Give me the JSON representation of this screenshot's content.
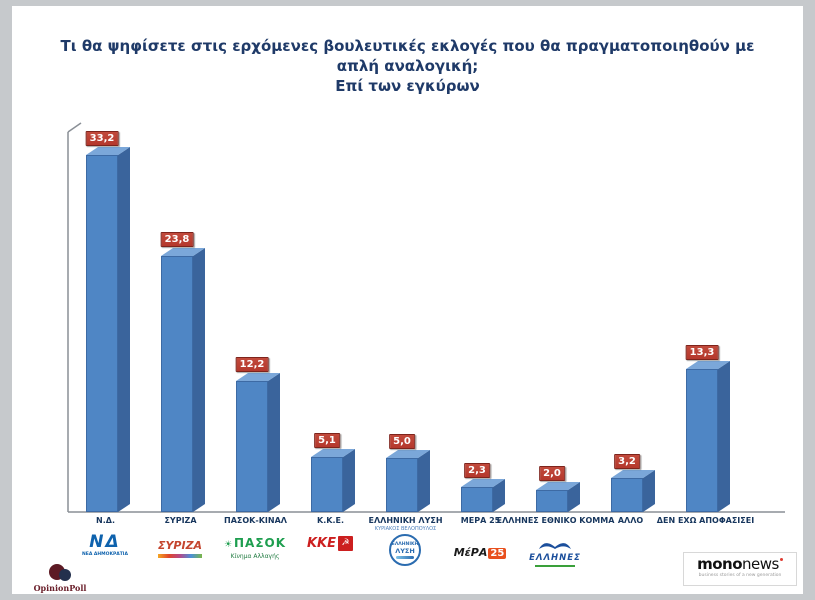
{
  "slide": {
    "title": "Τι θα ψηφίσετε στις ερχόμενες βουλευτικές εκλογές που θα πραγματοποιηθούν με\nαπλή αναλογική;\nΕπί των εγκύρων"
  },
  "chart_data": {
    "type": "bar",
    "title": "Τι θα ψηφίσετε στις ερχόμενες βουλευτικές εκλογές που θα πραγματοποιηθούν με απλή αναλογική;",
    "subtitle": "Επί των εγκύρων",
    "categories": [
      "Ν.Δ.",
      "ΣΥΡΙΖΑ",
      "ΠΑΣΟΚ-ΚΙΝΑΛ",
      "Κ.Κ.Ε.",
      "ΕΛΛΗΝΙΚΗ ΛΥΣΗ",
      "ΜΕΡΑ 25",
      "ΕΛΛΗΝΕΣ ΕΘΝΙΚΟ ΚΟΜΜΑ",
      "ΑΛΛΟ",
      "ΔΕΝ ΕΧΩ ΑΠΟΦΑΣΙΣΕΙ"
    ],
    "values": [
      33.2,
      23.8,
      12.2,
      5.1,
      5.0,
      2.3,
      2.0,
      3.2,
      13.3
    ],
    "display_labels": [
      "33,2",
      "23,8",
      "12,2",
      "5,1",
      "5,0",
      "2,3",
      "2,0",
      "3,2",
      "13,3"
    ],
    "sublabels": {
      "4": "ΚΥΡΙΑΚΟΣ ΒΕΛΟΠΟΥΛΟΣ"
    },
    "ylim": [
      0,
      35
    ],
    "grid": false,
    "legend": "none",
    "bar_color": "#4f86c5",
    "bar_side_color": "#3a649c",
    "bar_top_color": "#7ba7d9",
    "value_label_bg": "#b5382c",
    "title_color": "#1f3a68"
  },
  "party_logos": {
    "nd": {
      "abbr": "ΝΔ",
      "name": "ΝΕΑ ΔΗΜΟΚΡΑΤΙΑ"
    },
    "syriza": {
      "name": "ΣΥΡΙΖΑ"
    },
    "pasok": {
      "name": "ΠΑΣΟΚ",
      "sub": "Κίνημα Αλλαγής",
      "sun_icon": "☀"
    },
    "kke": {
      "name": "ΚΚΕ",
      "symbol": "☭"
    },
    "elliniki_lysi": {
      "line1": "ΕΛΛΗΝΙΚΗ",
      "line2": "ΛΥΣΗ"
    },
    "mera25": {
      "part1": "ΜέΡΑ",
      "part2": "25"
    },
    "ellines": {
      "name": "ΕΛΛΗΝΕΣ"
    }
  },
  "footer": {
    "opinionpoll_label": "OpinionPoll",
    "mononews": {
      "brand_bold": "mono",
      "brand_light": "news",
      "tagline": "business stories of a new generation"
    }
  }
}
